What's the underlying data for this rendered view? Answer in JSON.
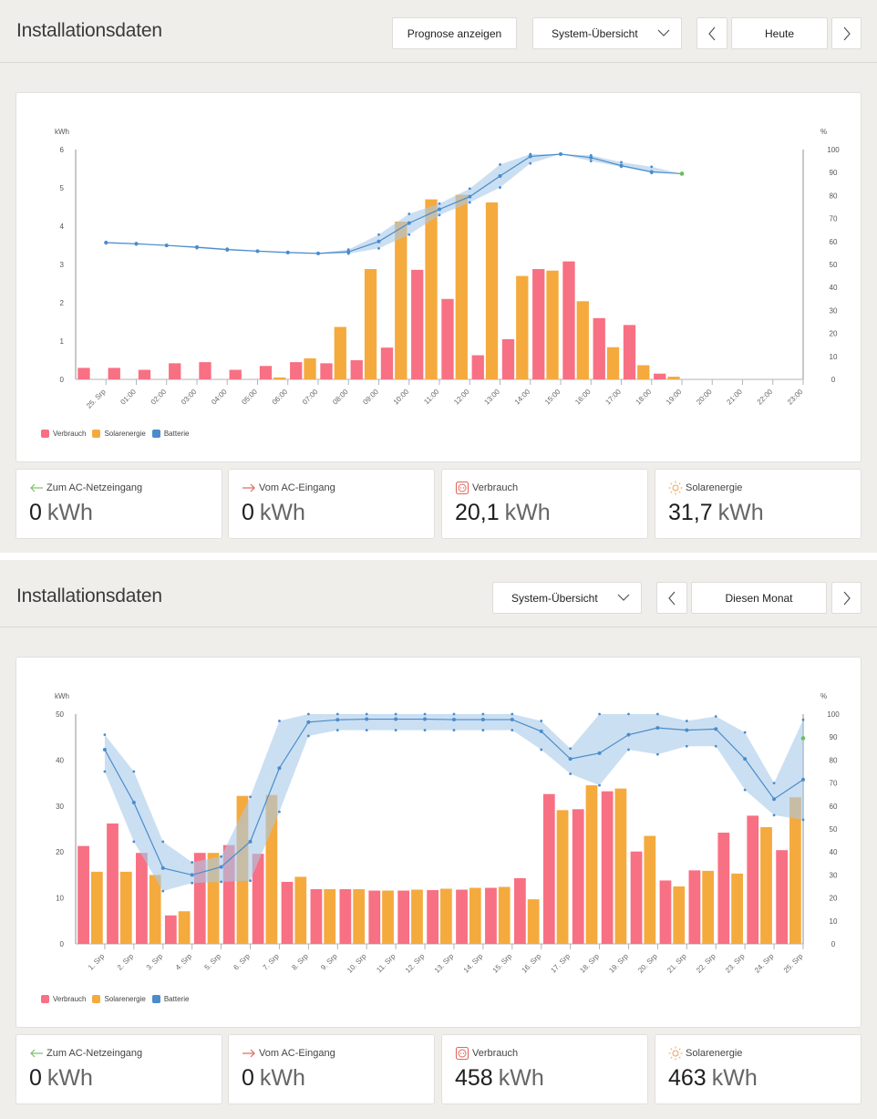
{
  "colors": {
    "verbrauch": "#f87083",
    "solar": "#f5aa3e",
    "battery": "#4a8ccc",
    "battery_band": "#a9c9ea",
    "battery_end": "#6bbf59",
    "arrow_in": "#7dbd6a",
    "arrow_out": "#e0685c"
  },
  "panels": [
    {
      "title": "Installationsdaten",
      "forecast_button": "Prognose anzeigen",
      "view_select": "System-Übersicht",
      "period_label": "Heute",
      "prev_icon": "chevron-left-icon",
      "next_icon": "chevron-right-icon",
      "legend": [
        "Verbrauch",
        "Solarenergie",
        "Batterie"
      ],
      "stats": [
        {
          "label": "Zum AC-Netzeingang",
          "value": "0",
          "unit": "kWh",
          "icon": "arrow-left-icon"
        },
        {
          "label": "Vom AC-Eingang",
          "value": "0",
          "unit": "kWh",
          "icon": "arrow-right-icon"
        },
        {
          "label": "Verbrauch",
          "value": "20,1",
          "unit": "kWh",
          "icon": "socket-icon"
        },
        {
          "label": "Solarenergie",
          "value": "31,7",
          "unit": "kWh",
          "icon": "sun-icon"
        }
      ]
    },
    {
      "title": "Installationsdaten",
      "view_select": "System-Übersicht",
      "period_label": "Diesen Monat",
      "prev_icon": "chevron-left-icon",
      "next_icon": "chevron-right-icon",
      "legend": [
        "Verbrauch",
        "Solarenergie",
        "Batterie"
      ],
      "stats": [
        {
          "label": "Zum AC-Netzeingang",
          "value": "0",
          "unit": "kWh",
          "icon": "arrow-left-icon"
        },
        {
          "label": "Vom AC-Eingang",
          "value": "0",
          "unit": "kWh",
          "icon": "arrow-right-icon"
        },
        {
          "label": "Verbrauch",
          "value": "458",
          "unit": "kWh",
          "icon": "socket-icon"
        },
        {
          "label": "Solarenergie",
          "value": "463",
          "unit": "kWh",
          "icon": "sun-icon"
        }
      ]
    }
  ],
  "chart_data": [
    {
      "type": "bar",
      "title": "",
      "ylabel": "kWh",
      "y2label": "%",
      "ylim": [
        0,
        6
      ],
      "y2lim": [
        0,
        100
      ],
      "yticks": [
        "0",
        "1",
        "2",
        "3",
        "4",
        "5",
        "6"
      ],
      "y2ticks": [
        "0",
        "10",
        "20",
        "30",
        "40",
        "50",
        "60",
        "70",
        "80",
        "90",
        "100"
      ],
      "categories": [
        "25. Srp",
        "01:00",
        "02:00",
        "03:00",
        "04:00",
        "05:00",
        "06:00",
        "07:00",
        "08:00",
        "09:00",
        "10:00",
        "11:00",
        "12:00",
        "13:00",
        "14:00",
        "15:00",
        "16:00",
        "17:00",
        "18:00",
        "19:00",
        "20:00",
        "21:00",
        "22:00",
        "23:00"
      ],
      "series": [
        {
          "name": "Verbrauch",
          "axis": "left",
          "values": [
            0.3,
            0.3,
            0.25,
            0.42,
            0.45,
            0.25,
            0.35,
            0.45,
            0.42,
            0.5,
            0.83,
            2.86,
            2.1,
            0.63,
            1.05,
            2.88,
            3.08,
            1.6,
            1.42,
            0.15,
            0,
            0,
            0,
            0
          ]
        },
        {
          "name": "Solarenergie",
          "axis": "left",
          "values": [
            0,
            0,
            0,
            0,
            0,
            0,
            0.05,
            0.55,
            1.37,
            2.88,
            4.12,
            4.7,
            4.82,
            4.62,
            2.7,
            2.84,
            2.04,
            0.84,
            0.37,
            0.07,
            0,
            0,
            0,
            0
          ]
        },
        {
          "name": "Batterie",
          "axis": "right",
          "type": "line",
          "values": [
            59.5,
            59,
            58.3,
            57.5,
            56.5,
            55.8,
            55.2,
            54.8,
            55.5,
            60,
            68,
            74,
            79.5,
            88.5,
            97,
            98,
            96.5,
            93,
            90.3,
            89.5
          ],
          "min": [
            59.2,
            58.7,
            58.1,
            57.1,
            56.1,
            55.6,
            55.0,
            54.7,
            54.7,
            57,
            63,
            71.5,
            77,
            83.5,
            94,
            98,
            95,
            92.5,
            89.8,
            89.5
          ],
          "max": [
            59.8,
            59.3,
            58.5,
            57.9,
            56.9,
            56.0,
            55.5,
            55.0,
            56.5,
            63,
            72,
            76.5,
            83,
            93.5,
            98,
            98,
            97.5,
            94.5,
            92.5,
            89.5
          ]
        }
      ],
      "legend_position": "bottom-left",
      "grid": false
    },
    {
      "type": "bar",
      "title": "",
      "ylabel": "kWh",
      "y2label": "%",
      "ylim": [
        0,
        50
      ],
      "y2lim": [
        0,
        100
      ],
      "yticks": [
        "0",
        "10",
        "20",
        "30",
        "40",
        "50"
      ],
      "y2ticks": [
        "0",
        "10",
        "20",
        "30",
        "40",
        "50",
        "60",
        "70",
        "80",
        "90",
        "100"
      ],
      "categories": [
        "1. Srp",
        "2. Srp",
        "3. Srp",
        "4. Srp",
        "5. Srp",
        "6. Srp",
        "7. Srp",
        "8. Srp",
        "9. Srp",
        "10. Srp",
        "11. Srp",
        "12. Srp",
        "13. Srp",
        "14. Srp",
        "15. Srp",
        "16. Srp",
        "17. Srp",
        "18. Srp",
        "19. Srp",
        "20. Srp",
        "21. Srp",
        "22. Srp",
        "23. Srp",
        "24. Srp",
        "25. Srp"
      ],
      "series": [
        {
          "name": "Verbrauch",
          "axis": "left",
          "values": [
            21.3,
            26.2,
            19.8,
            6.2,
            19.8,
            21.5,
            19.6,
            13.5,
            11.9,
            11.9,
            11.6,
            11.6,
            11.7,
            11.8,
            12.2,
            14.3,
            32.6,
            29.3,
            33.2,
            20.1,
            13.8,
            16.0,
            24.2,
            27.9,
            20.4
          ]
        },
        {
          "name": "Solarenergie",
          "axis": "left",
          "values": [
            15.7,
            15.7,
            15.0,
            7.1,
            19.8,
            32.2,
            32.4,
            14.6,
            11.9,
            11.9,
            11.6,
            11.8,
            12.0,
            12.2,
            12.4,
            9.7,
            29.1,
            34.5,
            33.8,
            23.5,
            12.5,
            15.9,
            15.3,
            25.4,
            31.9
          ]
        },
        {
          "name": "Batterie",
          "axis": "right",
          "type": "line",
          "values": [
            84.5,
            61.5,
            33,
            30,
            33.5,
            44.5,
            76.5,
            96.5,
            97.5,
            97.8,
            97.8,
            97.8,
            97.6,
            97.6,
            97.6,
            92.5,
            80.5,
            83,
            91,
            94,
            93,
            93.5,
            80.5,
            63,
            71.5
          ],
          "min": [
            75,
            44.5,
            23,
            26.5,
            27,
            27.5,
            57.5,
            90.5,
            93,
            93,
            93,
            93,
            93,
            93,
            93,
            84.5,
            74,
            69,
            84.5,
            82.5,
            86,
            86,
            67,
            56,
            54
          ],
          "max": [
            91,
            75,
            44.5,
            35.5,
            38,
            64,
            97,
            100,
            100,
            100,
            100,
            100,
            100,
            100,
            100,
            97,
            85,
            100,
            100,
            100,
            97,
            99,
            92,
            70,
            97.5
          ],
          "end_marker": 89.5
        }
      ],
      "legend_position": "bottom-left",
      "grid": false
    }
  ]
}
